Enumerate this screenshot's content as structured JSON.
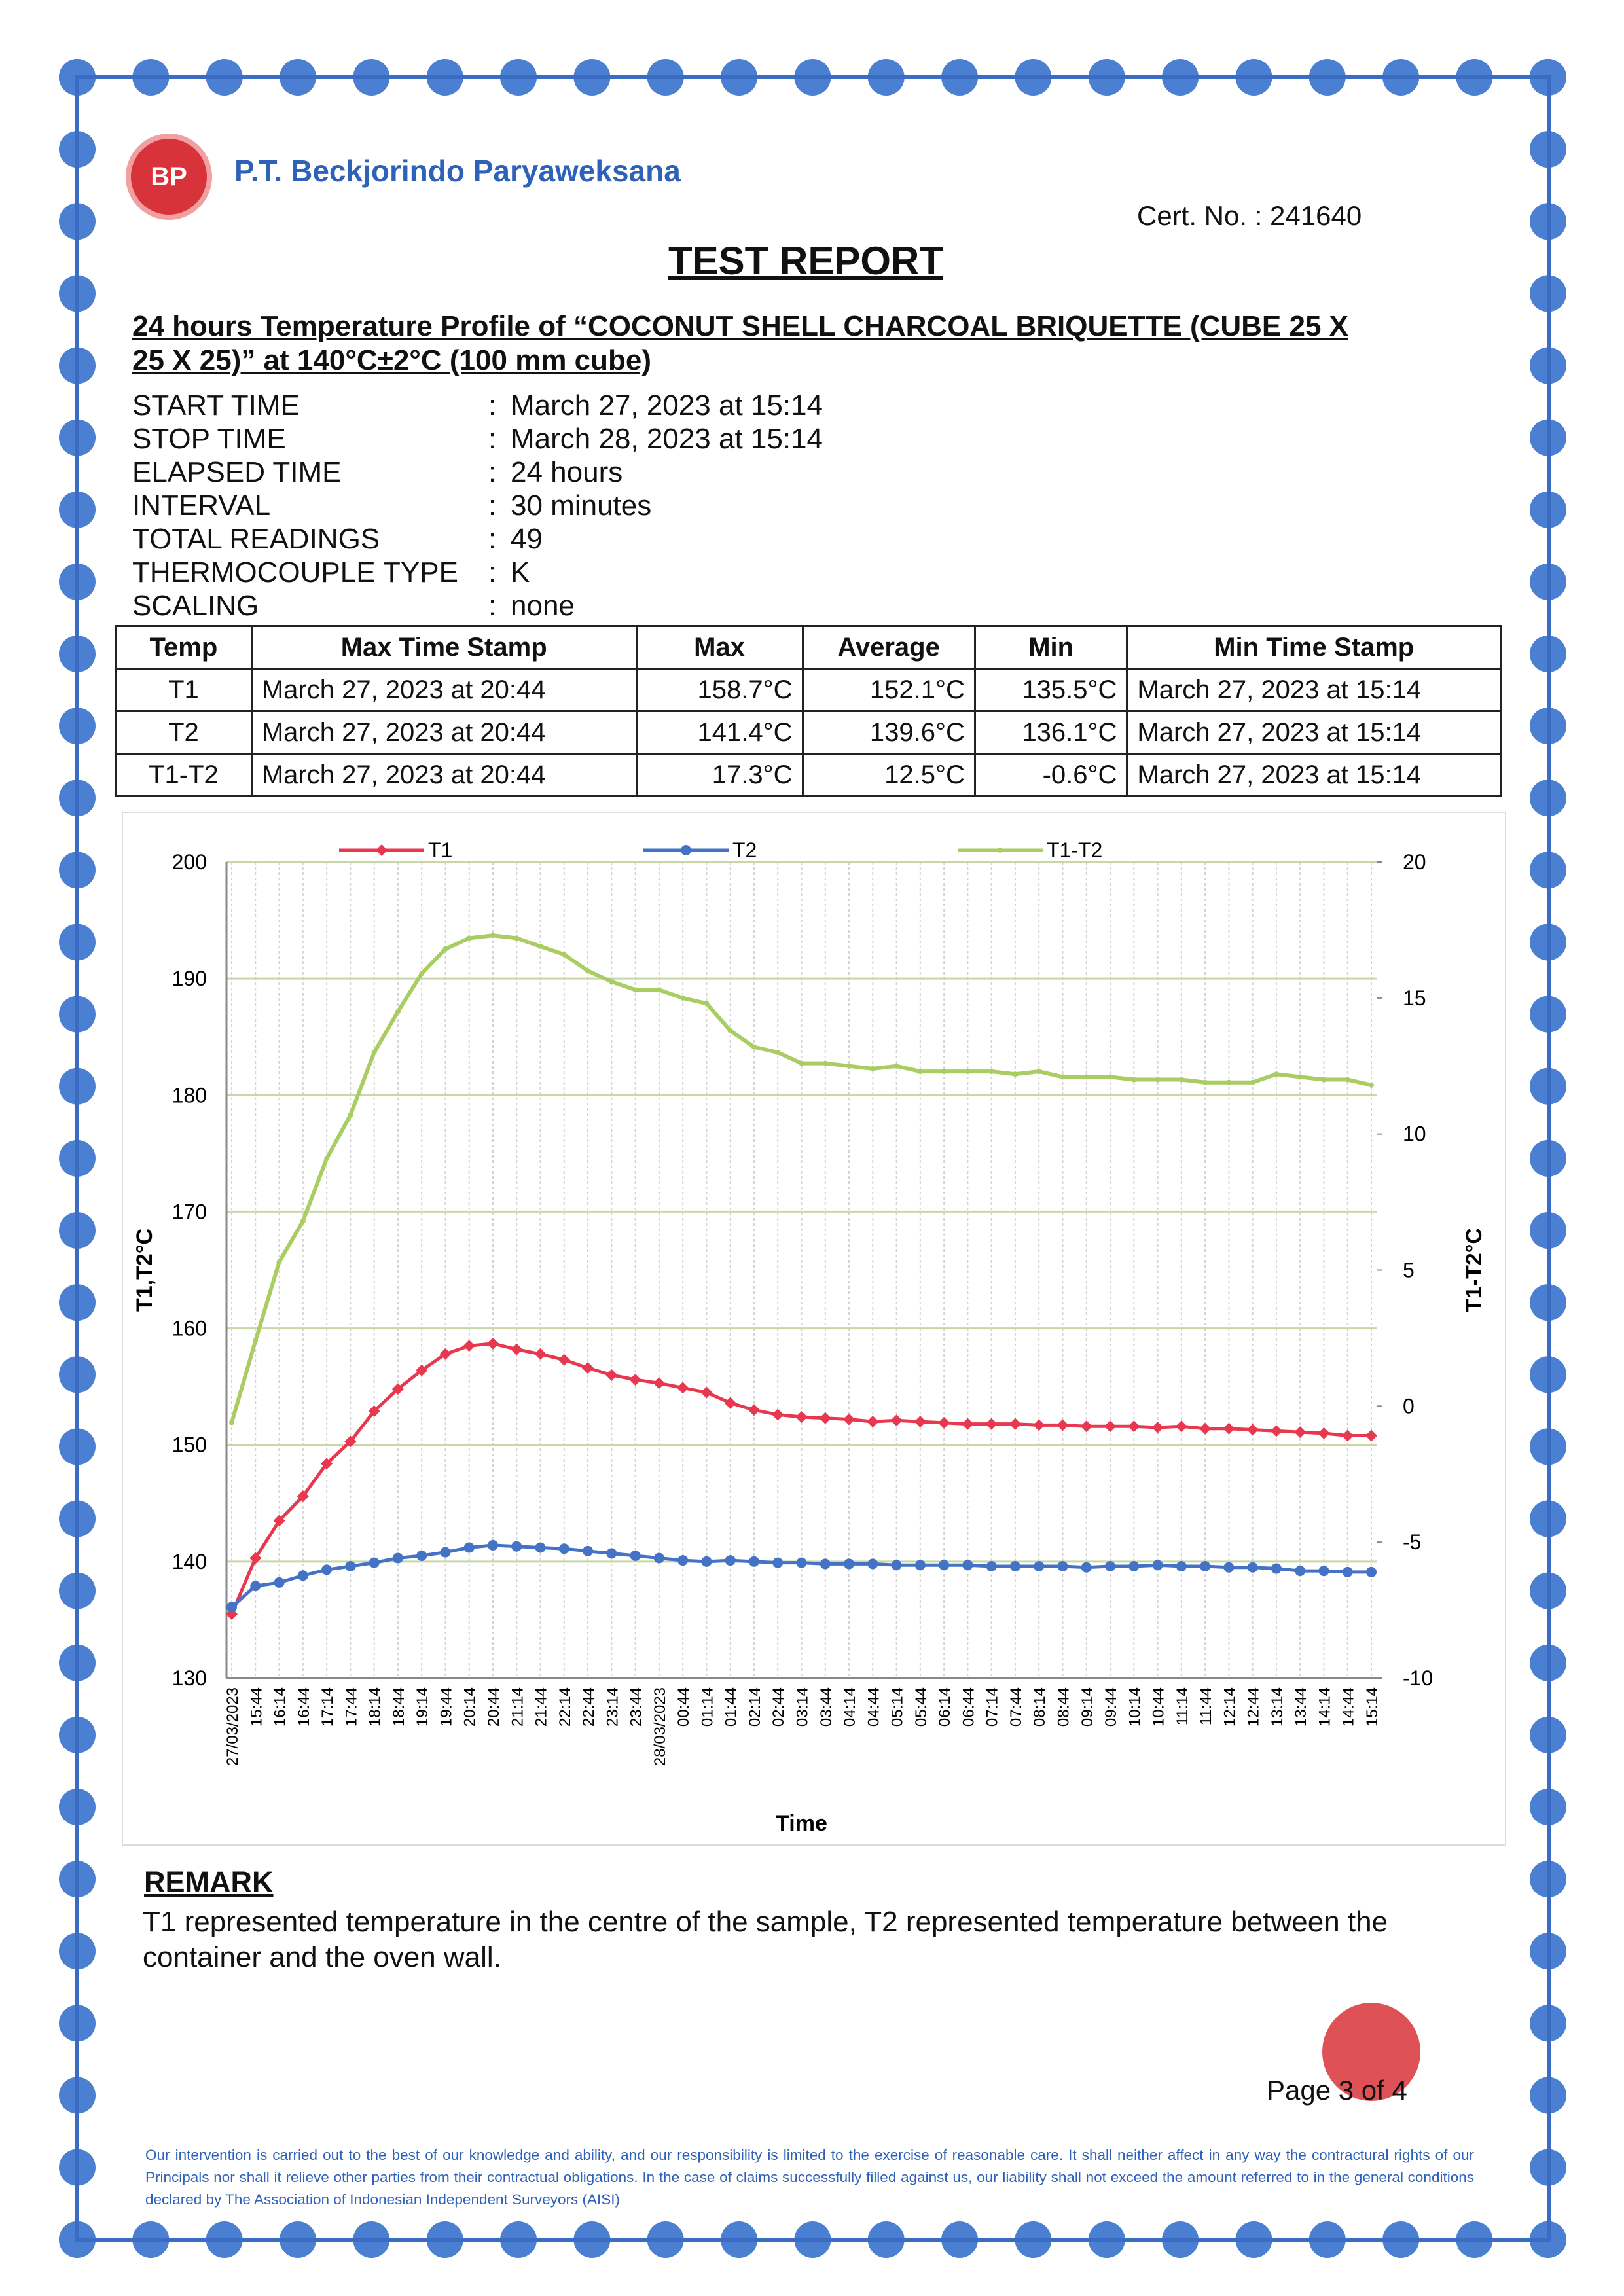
{
  "header": {
    "logo_text": "BP",
    "company": "P.T. Beckjorindo Paryaweksana",
    "cert_no": "Cert. No. : 241640",
    "title": "TEST REPORT"
  },
  "subtitle": [
    "24 hours Temperature Profile of “COCONUT SHELL CHARCOAL BRIQUETTE (CUBE 25 X",
    "25 X 25)” at 140°C±2°C (100 mm cube)"
  ],
  "info": [
    {
      "label": "START TIME",
      "value": "March 27, 2023 at 15:14"
    },
    {
      "label": "STOP TIME",
      "value": "March 28, 2023 at 15:14"
    },
    {
      "label": "ELAPSED TIME",
      "value": "24 hours"
    },
    {
      "label": "INTERVAL",
      "value": "30 minutes"
    },
    {
      "label": "TOTAL READINGS",
      "value": "49"
    },
    {
      "label": "THERMOCOUPLE TYPE",
      "value": "K"
    },
    {
      "label": "SCALING",
      "value": "none"
    }
  ],
  "table": {
    "columns": [
      "Temp",
      "Max Time Stamp",
      "Max",
      "Average",
      "Min",
      "Min Time Stamp"
    ],
    "rows": [
      [
        "T1",
        "March 27, 2023 at 20:44",
        "158.7°C",
        "152.1°C",
        "135.5°C",
        "March 27, 2023 at 15:14"
      ],
      [
        "T2",
        "March 27, 2023 at 20:44",
        "141.4°C",
        "139.6°C",
        "136.1°C",
        "March 27, 2023 at 15:14"
      ],
      [
        "T1-T2",
        "March 27, 2023 at 20:44",
        "17.3°C",
        "12.5°C",
        "-0.6°C",
        "March 27, 2023 at 15:14"
      ]
    ]
  },
  "chart_data": {
    "type": "line",
    "x_label": "Time",
    "y_label": "T1,T2°C",
    "y2_label": "T1-T2°C",
    "legend": "top",
    "grid": true,
    "categories": [
      "27/03/2023",
      "15:44",
      "16:14",
      "16:44",
      "17:14",
      "17:44",
      "18:14",
      "18:44",
      "19:14",
      "19:44",
      "20:14",
      "20:44",
      "21:14",
      "21:44",
      "22:14",
      "22:44",
      "23:14",
      "23:44",
      "28/03/2023",
      "00:44",
      "01:14",
      "01:44",
      "02:14",
      "02:44",
      "03:14",
      "03:44",
      "04:14",
      "04:44",
      "05:14",
      "05:44",
      "06:14",
      "06:44",
      "07:14",
      "07:44",
      "08:14",
      "08:44",
      "09:14",
      "09:44",
      "10:14",
      "10:44",
      "11:14",
      "11:44",
      "12:14",
      "12:44",
      "13:14",
      "13:44",
      "14:14",
      "14:44",
      "15:14"
    ],
    "ylim": [
      130,
      200
    ],
    "yticks": [
      130,
      140,
      150,
      160,
      170,
      180,
      190,
      200
    ],
    "y2lim": [
      -10,
      20
    ],
    "y2ticks": [
      -10,
      -5,
      0,
      5,
      10,
      15,
      20
    ],
    "series": [
      {
        "name": "T1",
        "color": "#e8384f",
        "values": [
          135.5,
          140.3,
          143.5,
          145.6,
          148.4,
          150.3,
          152.9,
          154.8,
          156.4,
          157.8,
          158.5,
          158.7,
          158.2,
          157.8,
          157.3,
          156.6,
          156.0,
          155.6,
          155.3,
          154.9,
          154.5,
          153.6,
          153.0,
          152.6,
          152.4,
          152.3,
          152.2,
          152.0,
          152.1,
          152.0,
          151.9,
          151.8,
          151.8,
          151.8,
          151.7,
          151.7,
          151.6,
          151.6,
          151.6,
          151.5,
          151.6,
          151.4,
          151.4,
          151.3,
          151.2,
          151.1,
          151.0,
          150.8,
          150.8
        ]
      },
      {
        "name": "T2",
        "color": "#4472c4",
        "values": [
          136.1,
          137.9,
          138.2,
          138.8,
          139.3,
          139.6,
          139.9,
          140.3,
          140.5,
          140.8,
          141.2,
          141.4,
          141.3,
          141.2,
          141.1,
          140.9,
          140.7,
          140.5,
          140.3,
          140.1,
          140.0,
          140.1,
          140.0,
          139.9,
          139.9,
          139.8,
          139.8,
          139.8,
          139.7,
          139.7,
          139.7,
          139.7,
          139.6,
          139.6,
          139.6,
          139.6,
          139.5,
          139.6,
          139.6,
          139.7,
          139.6,
          139.6,
          139.5,
          139.5,
          139.4,
          139.2,
          139.2,
          139.1,
          139.1
        ]
      },
      {
        "name": "T1-T2",
        "color": "#a9cd63",
        "axis": "y2",
        "values": [
          -0.6,
          2.4,
          5.3,
          6.8,
          9.1,
          10.7,
          13.0,
          14.5,
          15.9,
          16.8,
          17.2,
          17.3,
          17.2,
          16.9,
          16.6,
          16.0,
          15.6,
          15.3,
          15.3,
          15.0,
          14.8,
          13.8,
          13.2,
          13.0,
          12.6,
          12.6,
          12.5,
          12.4,
          12.5,
          12.3,
          12.3,
          12.3,
          12.3,
          12.2,
          12.3,
          12.1,
          12.1,
          12.1,
          12.0,
          12.0,
          12.0,
          11.9,
          11.9,
          11.9,
          12.2,
          12.1,
          12.0,
          12.0,
          11.8
        ]
      }
    ]
  },
  "remark": {
    "title": "REMARK",
    "text": "T1 represented temperature in the centre of the sample, T2 represented temperature between the container and the oven wall."
  },
  "page": "Page 3 of 4",
  "disclaimer": "Our intervention is carried out to the best of our knowledge and ability, and our responsibility is limited to the exercise of reasonable care. It shall neither affect in any way the contractural rights of our Principals nor shall it relieve other parties from their contractual obligations. In the case of claims successfully filled against us, our liability shall not exceed the amount referred to in the general conditions declared by The Association of Indonesian Independent Surveyors (AISI)"
}
